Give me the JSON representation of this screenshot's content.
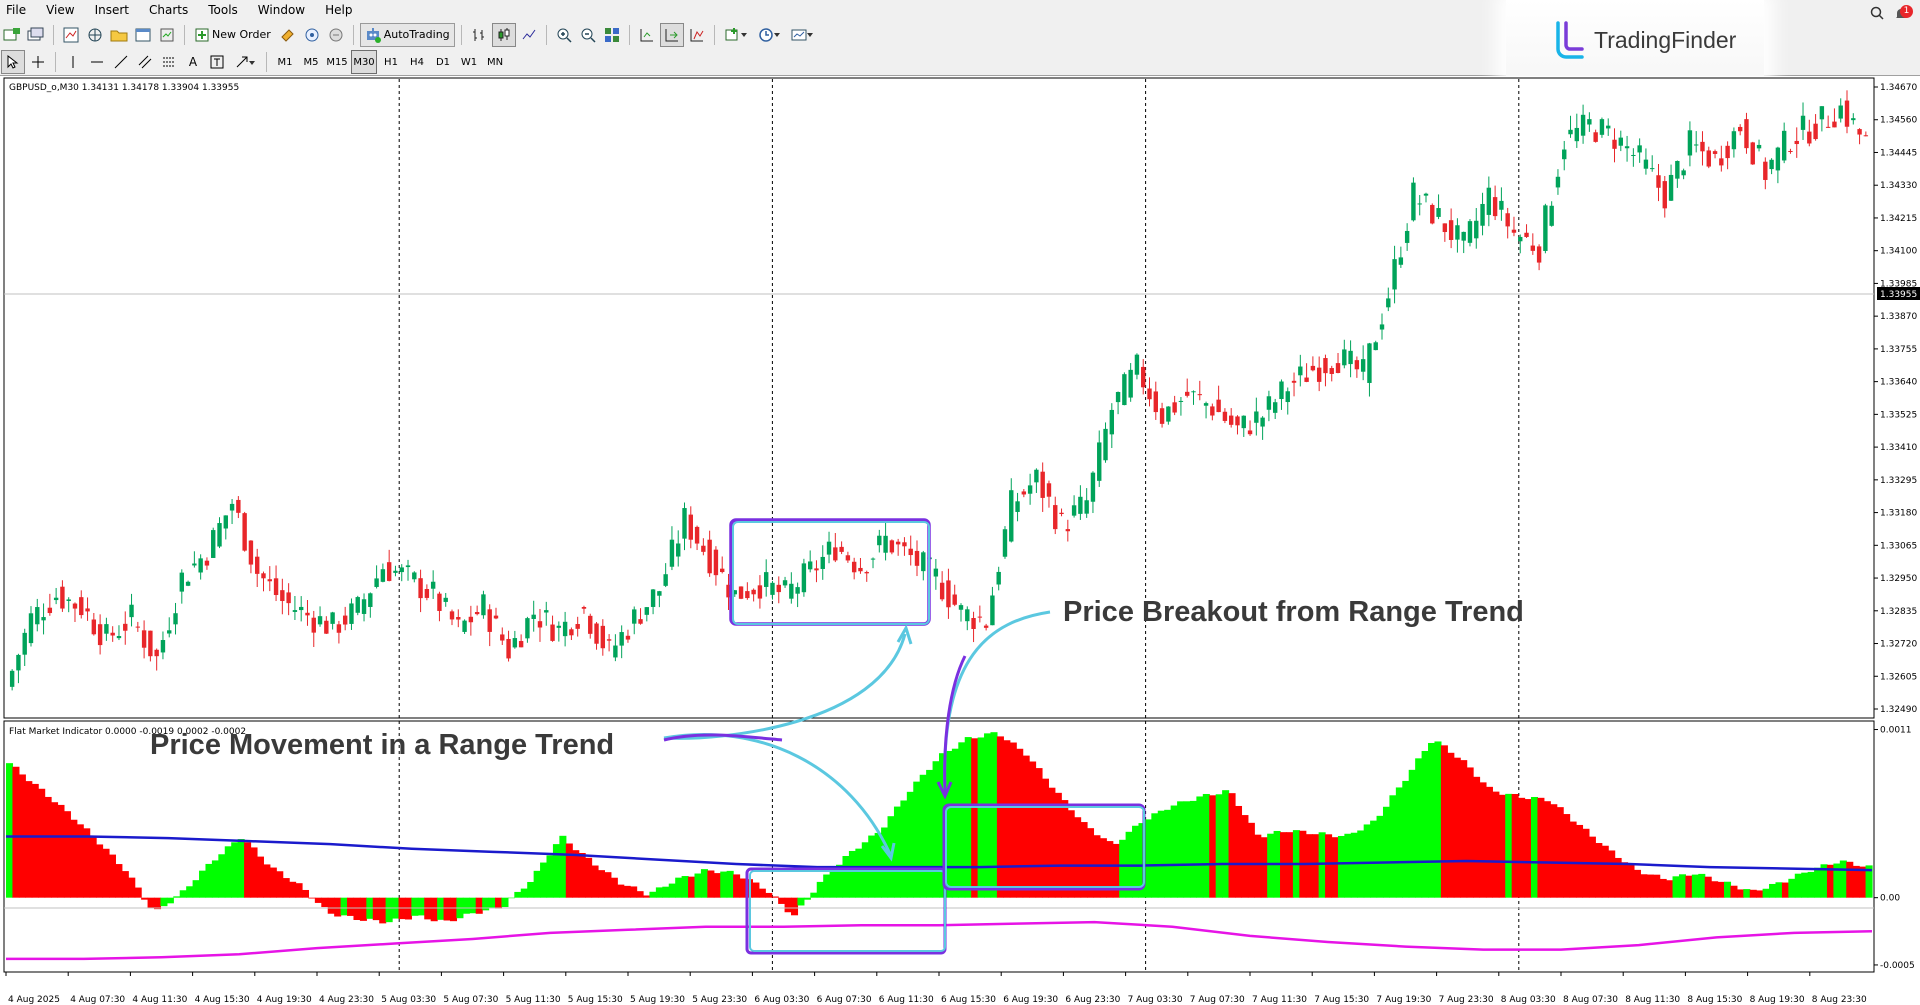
{
  "menu": [
    "File",
    "View",
    "Insert",
    "Charts",
    "Tools",
    "Window",
    "Help"
  ],
  "toolbar": {
    "new_order": "New Order",
    "auto_trading": "AutoTrading",
    "timeframes": [
      "M1",
      "M5",
      "M15",
      "M30",
      "H1",
      "H4",
      "D1",
      "W1",
      "MN"
    ],
    "active_timeframe": "M30"
  },
  "brand": {
    "name": "TradingFinder",
    "color": "#19b4e8"
  },
  "window": {
    "notification_count": "1"
  },
  "chart": {
    "symbol_info": "GBPUSD_o,M30  1.34131 1.34178 1.33904 1.33955",
    "current_price": "1.33955",
    "price_labels": [
      "1.34670",
      "1.34560",
      "1.34445",
      "1.34330",
      "1.34215",
      "1.34100",
      "1.33985",
      "1.33870",
      "1.33755",
      "1.33640",
      "1.33525",
      "1.33410",
      "1.33295",
      "1.33180",
      "1.33065",
      "1.32950",
      "1.32835",
      "1.32720",
      "1.32605",
      "1.32490"
    ],
    "time_labels": [
      "4 Aug 2025",
      "4 Aug 07:30",
      "4 Aug 11:30",
      "4 Aug 15:30",
      "4 Aug 19:30",
      "4 Aug 23:30",
      "5 Aug 03:30",
      "5 Aug 07:30",
      "5 Aug 11:30",
      "5 Aug 15:30",
      "5 Aug 19:30",
      "5 Aug 23:30",
      "6 Aug 03:30",
      "6 Aug 07:30",
      "6 Aug 11:30",
      "6 Aug 15:30",
      "6 Aug 19:30",
      "6 Aug 23:30",
      "7 Aug 03:30",
      "7 Aug 07:30",
      "7 Aug 11:30",
      "7 Aug 15:30",
      "7 Aug 19:30",
      "7 Aug 23:30",
      "8 Aug 03:30",
      "8 Aug 07:30",
      "8 Aug 11:30",
      "8 Aug 15:30",
      "8 Aug 19:30",
      "8 Aug 23:30"
    ],
    "bull_color": "#00a35a",
    "bear_color": "#e8262a",
    "price_range": [
      1.3249,
      1.3467
    ],
    "price_path": [
      1.3258,
      1.3282,
      1.329,
      1.3286,
      1.3275,
      1.3282,
      1.3268,
      1.3296,
      1.3305,
      1.3322,
      1.3298,
      1.3288,
      1.3283,
      1.3279,
      1.3285,
      1.33,
      1.3296,
      1.329,
      1.3278,
      1.3286,
      1.3271,
      1.3284,
      1.3278,
      1.3285,
      1.327,
      1.3282,
      1.3292,
      1.3316,
      1.3303,
      1.329,
      1.3294,
      1.329,
      1.3298,
      1.3307,
      1.33,
      1.3309,
      1.3303,
      1.3296,
      1.3284,
      1.3281,
      1.3321,
      1.333,
      1.3314,
      1.3322,
      1.3354,
      1.3368,
      1.3352,
      1.3359,
      1.3355,
      1.3347,
      1.3352,
      1.3362,
      1.3368,
      1.3372,
      1.3366,
      1.3394,
      1.3428,
      1.342,
      1.341,
      1.3428,
      1.3415,
      1.341,
      1.3447,
      1.3452,
      1.3448,
      1.344,
      1.3428,
      1.3445,
      1.344,
      1.3452,
      1.3436,
      1.3448,
      1.3452,
      1.3458,
      1.3446
    ]
  },
  "indicator": {
    "label": "Flat Market Indicator 0.0000 -0.0019 0.0002 -0.0002",
    "scale_labels": [
      "0.0011",
      "0.00",
      "-0.0005"
    ],
    "range": [
      -0.00046,
      0.00111
    ],
    "green": "#00ff00",
    "red": "#ff0000",
    "ma_color": "#1a1acc",
    "lower_color": "#e614e6",
    "histogram": [
      0.00088,
      0.00072,
      0.00056,
      0.00038,
      0.00018,
      -0.0001,
      4e-05,
      0.00024,
      0.0004,
      0.0002,
      8e-05,
      -0.0001,
      -0.00014,
      -0.00016,
      -0.00012,
      -0.00016,
      -0.0001,
      -6e-05,
      0.00012,
      0.0004,
      0.00024,
      0.0001,
      2e-05,
      0.00012,
      0.00018,
      0.00016,
      6e-05,
      -0.00012,
      0.00012,
      0.0003,
      0.00044,
      0.0007,
      0.00092,
      0.00104,
      0.00108,
      0.00094,
      0.0007,
      0.00048,
      0.00034,
      0.0005,
      0.0006,
      0.00066,
      0.0007,
      0.0004,
      0.00044,
      0.00042,
      0.0004,
      0.0005,
      0.00076,
      0.00104,
      0.0009,
      0.0007,
      0.00066,
      0.00064,
      0.00048,
      0.00032,
      0.00018,
      0.00012,
      0.00016,
      0.0001,
      4e-05,
      0.0001,
      0.00018,
      0.00024,
      0.0002
    ],
    "ma": [
      0.0004,
      0.0004,
      0.00039,
      0.00037,
      0.00035,
      0.00032,
      0.0003,
      0.00028,
      0.00025,
      0.00022,
      0.0002,
      0.0002,
      0.0002,
      0.00021,
      0.00021,
      0.00022,
      0.00022,
      0.00023,
      0.00024,
      0.00023,
      0.00022,
      0.0002,
      0.00019,
      0.00018
    ],
    "lower": [
      -0.0004,
      -0.0004,
      -0.00039,
      -0.00037,
      -0.00033,
      -0.0003,
      -0.00027,
      -0.00023,
      -0.00021,
      -0.00019,
      -0.00019,
      -0.00018,
      -0.00018,
      -0.00017,
      -0.00016,
      -0.00019,
      -0.00025,
      -0.00029,
      -0.00032,
      -0.00034,
      -0.00034,
      -0.00031,
      -0.00026,
      -0.00023,
      -0.00022
    ]
  },
  "annotations": {
    "range_label": "Price Movement in a Range Trend",
    "breakout_label": "Price Breakout from Range Trend",
    "box_purple": "#7a30e0",
    "box_cyan": "#5bc8e0",
    "arrow_color": "#5bc8e0"
  }
}
